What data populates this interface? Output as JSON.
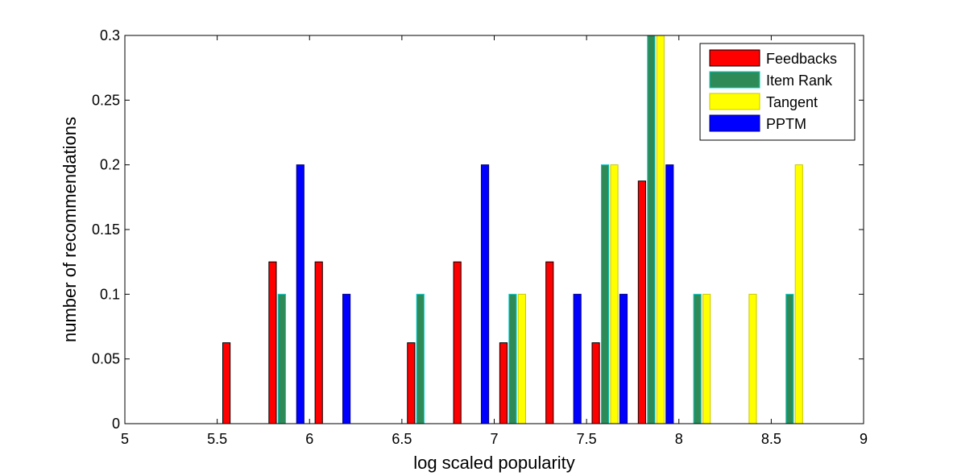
{
  "chart_data": {
    "type": "bar",
    "title": "",
    "xlabel": "log scaled popularity",
    "ylabel": "number of recommendations",
    "xlim": [
      5,
      9
    ],
    "ylim": [
      0,
      0.3
    ],
    "x_ticks": [
      "5",
      "5.5",
      "6",
      "6.5",
      "7",
      "7.5",
      "8",
      "8.5",
      "9"
    ],
    "y_ticks": [
      "0",
      "0.05",
      "0.1",
      "0.15",
      "0.2",
      "0.25",
      "0.3"
    ],
    "bin_centers": [
      5.125,
      5.375,
      5.625,
      5.875,
      6.125,
      6.375,
      6.625,
      6.875,
      7.125,
      7.375,
      7.625,
      7.875,
      8.125,
      8.375,
      8.625,
      8.875
    ],
    "grid": false,
    "legend_position": "top-right",
    "series": [
      {
        "name": "Feedbacks",
        "color": "#ff0000",
        "edge": "#000000",
        "values": [
          0,
          0,
          0.0625,
          0.125,
          0.125,
          0,
          0.0625,
          0.125,
          0.0625,
          0.125,
          0.0625,
          0.1875,
          0,
          0,
          0,
          0
        ]
      },
      {
        "name": "Item Rank",
        "color": "#2e8b57",
        "edge": "#00c8c8",
        "values": [
          0,
          0,
          0,
          0.1,
          0,
          0,
          0.1,
          0,
          0.1,
          0,
          0.2,
          0.3,
          0.1,
          0,
          0.1,
          0
        ]
      },
      {
        "name": "Tangent",
        "color": "#ffff00",
        "edge": "#c8c800",
        "values": [
          0,
          0,
          0,
          0,
          0,
          0,
          0,
          0,
          0.1,
          0,
          0.2,
          0.3,
          0.1,
          0.1,
          0.2,
          0
        ]
      },
      {
        "name": "PPTM",
        "color": "#0000ff",
        "edge": "#000080",
        "values": [
          0,
          0,
          0,
          0.2,
          0.1,
          0,
          0,
          0.2,
          0,
          0.1,
          0.1,
          0.2,
          0,
          0,
          0,
          0
        ]
      }
    ]
  }
}
